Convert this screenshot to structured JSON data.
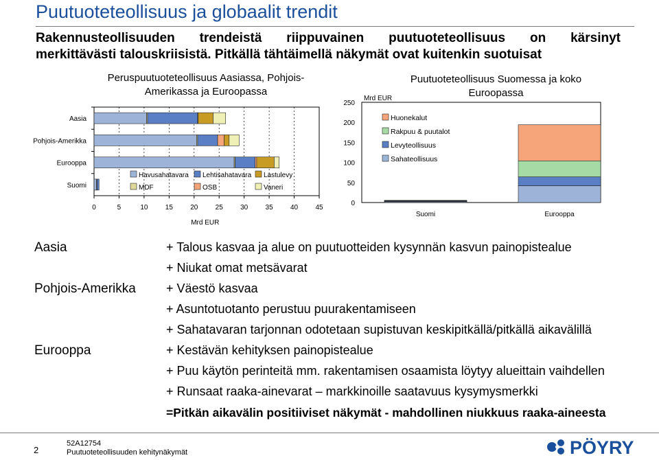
{
  "title": "Puutuoteteollisuus ja globaalit trendit",
  "subtitle_lines": [
    "Rakennusteollisuuden trendeistä riippuvainen puutuoteteollisuus on kärsinyt",
    "merkittävästi talouskriisistä. Pitkällä tähtäimellä näkymät ovat kuitenkin suotuisat"
  ],
  "chart_data": [
    {
      "type": "bar",
      "orientation": "horizontal-stacked",
      "title": "Peruspuutuoteteollisuus Aasiassa, Pohjois-Amerikassa ja Euroopassa",
      "xlabel": "Mrd EUR",
      "xlim": [
        0,
        45
      ],
      "xticks": [
        "0",
        "5",
        "10",
        "15",
        "20",
        "25",
        "30",
        "35",
        "40",
        "45"
      ],
      "categories": [
        "Aasia",
        "Pohjois-Amerikka",
        "Eurooppa",
        "Suomi"
      ],
      "series": [
        {
          "name": "Havusahatavara",
          "color": "#9db3d8",
          "values": [
            10.5,
            20.5,
            28.0,
            0.5
          ]
        },
        {
          "name": "MDF",
          "color": "#dcd99a",
          "values": [
            0.2,
            0.2,
            0.2,
            0.1
          ]
        },
        {
          "name": "Lehtisahatavara",
          "color": "#5b7fc4",
          "values": [
            10.0,
            4.0,
            4.0,
            0.4
          ]
        },
        {
          "name": "OSB",
          "color": "#f6a47a",
          "values": [
            0.1,
            1.3,
            0.3,
            0.0
          ]
        },
        {
          "name": "Lastulevy",
          "color": "#c89b24",
          "values": [
            3.0,
            1.0,
            3.5,
            0.0
          ]
        },
        {
          "name": "Vaneri",
          "color": "#eef0b6",
          "values": [
            2.5,
            2.0,
            1.0,
            0.0
          ]
        }
      ],
      "legend_position": "inside-bottom"
    },
    {
      "type": "bar",
      "orientation": "vertical-stacked",
      "title": "Puutuoteteollisuus Suomessa ja koko Euroopassa",
      "ylabel": "Mrd EUR",
      "ylim": [
        0,
        250
      ],
      "yticks": [
        "0",
        "50",
        "100",
        "150",
        "200",
        "250"
      ],
      "categories": [
        "Suomi",
        "Eurooppa"
      ],
      "series": [
        {
          "name": "Sahateollisuus",
          "color": "#9db3d8",
          "values": [
            2,
            42
          ]
        },
        {
          "name": "Levyteollisuus",
          "color": "#5b7fc4",
          "values": [
            1.5,
            22
          ]
        },
        {
          "name": "Rakpuu & puutalot",
          "color": "#a6dba6",
          "values": [
            1,
            40
          ]
        },
        {
          "name": "Huonekalut",
          "color": "#f6a47a",
          "values": [
            1,
            90
          ]
        }
      ],
      "legend_position": "upper-left"
    }
  ],
  "regions": [
    {
      "label": "Aasia",
      "bullets": [
        "+ Talous kasvaa ja alue on puutuotteiden kysynnän kasvun painopistealue",
        "+ Niukat omat metsävarat"
      ]
    },
    {
      "label": "Pohjois-Amerikka",
      "bullets": [
        "+ Väestö kasvaa",
        "+ Asuntotuotanto perustuu puurakentamiseen",
        "+ Sahatavaran tarjonnan odotetaan supistuvan keskipitkällä/pitkällä aikavälillä"
      ]
    },
    {
      "label": "Eurooppa",
      "bullets": [
        "+ Kestävän kehityksen painopistealue",
        "+ Puu käytön perinteitä mm. rakentamisen osaamista löytyy alueittain vaihdellen",
        "+ Runsaat raaka-ainevarat – markkinoille saatavuus kysymysmerkki"
      ]
    }
  ],
  "conclusion": "=Pitkän aikavälin positiiviset näkymät - mahdollinen niukkuus raaka-aineesta",
  "footer": {
    "page": "2",
    "code": "52A12754",
    "doc_title": "Puutuoteteollisuuden kehitynäkymät"
  },
  "logo": {
    "text": "PÖYRY",
    "color": "#1a4f9c"
  },
  "colors": {
    "title": "#1a4f9c"
  }
}
